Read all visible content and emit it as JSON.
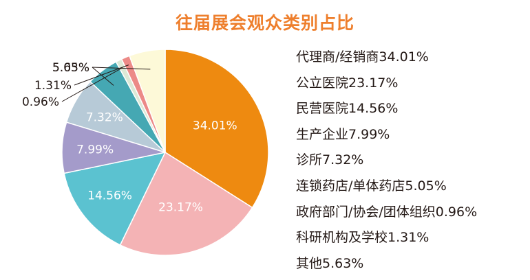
{
  "chart_data": {
    "type": "pie",
    "title": "往届展会观众类别占比",
    "categories": [
      "代理商/经销商",
      "公立医院",
      "民营医院",
      "生产企业",
      "诊所",
      "连锁药店/单体药店",
      "政府部门/协会/团体组织",
      "科研机构及学校",
      "其他"
    ],
    "values": [
      34.01,
      23.17,
      14.56,
      7.99,
      7.32,
      5.05,
      0.96,
      1.31,
      5.63
    ],
    "slice_labels": [
      "34.01%",
      "23.17%",
      "14.56%",
      "7.99%",
      "7.32%",
      "5.05%",
      "0.96%",
      "1.31%",
      "5.63%"
    ],
    "legend_entries": [
      "代理商/经销商34.01%",
      "公立医院23.17%",
      "民营医院14.56%",
      "生产企业7.99%",
      "诊所7.32%",
      "连锁药店/单体药店5.05%",
      "政府部门/协会/团体组织0.96%",
      "科研机构及学校1.31%",
      "其他5.63%"
    ],
    "colors": [
      "#ee8a10",
      "#f4b3b5",
      "#5bc2d0",
      "#a49bca",
      "#b7cad7",
      "#45a8b3",
      "#dce9d6",
      "#ec8a87",
      "#fdf9d8"
    ],
    "legend_position": "right"
  }
}
